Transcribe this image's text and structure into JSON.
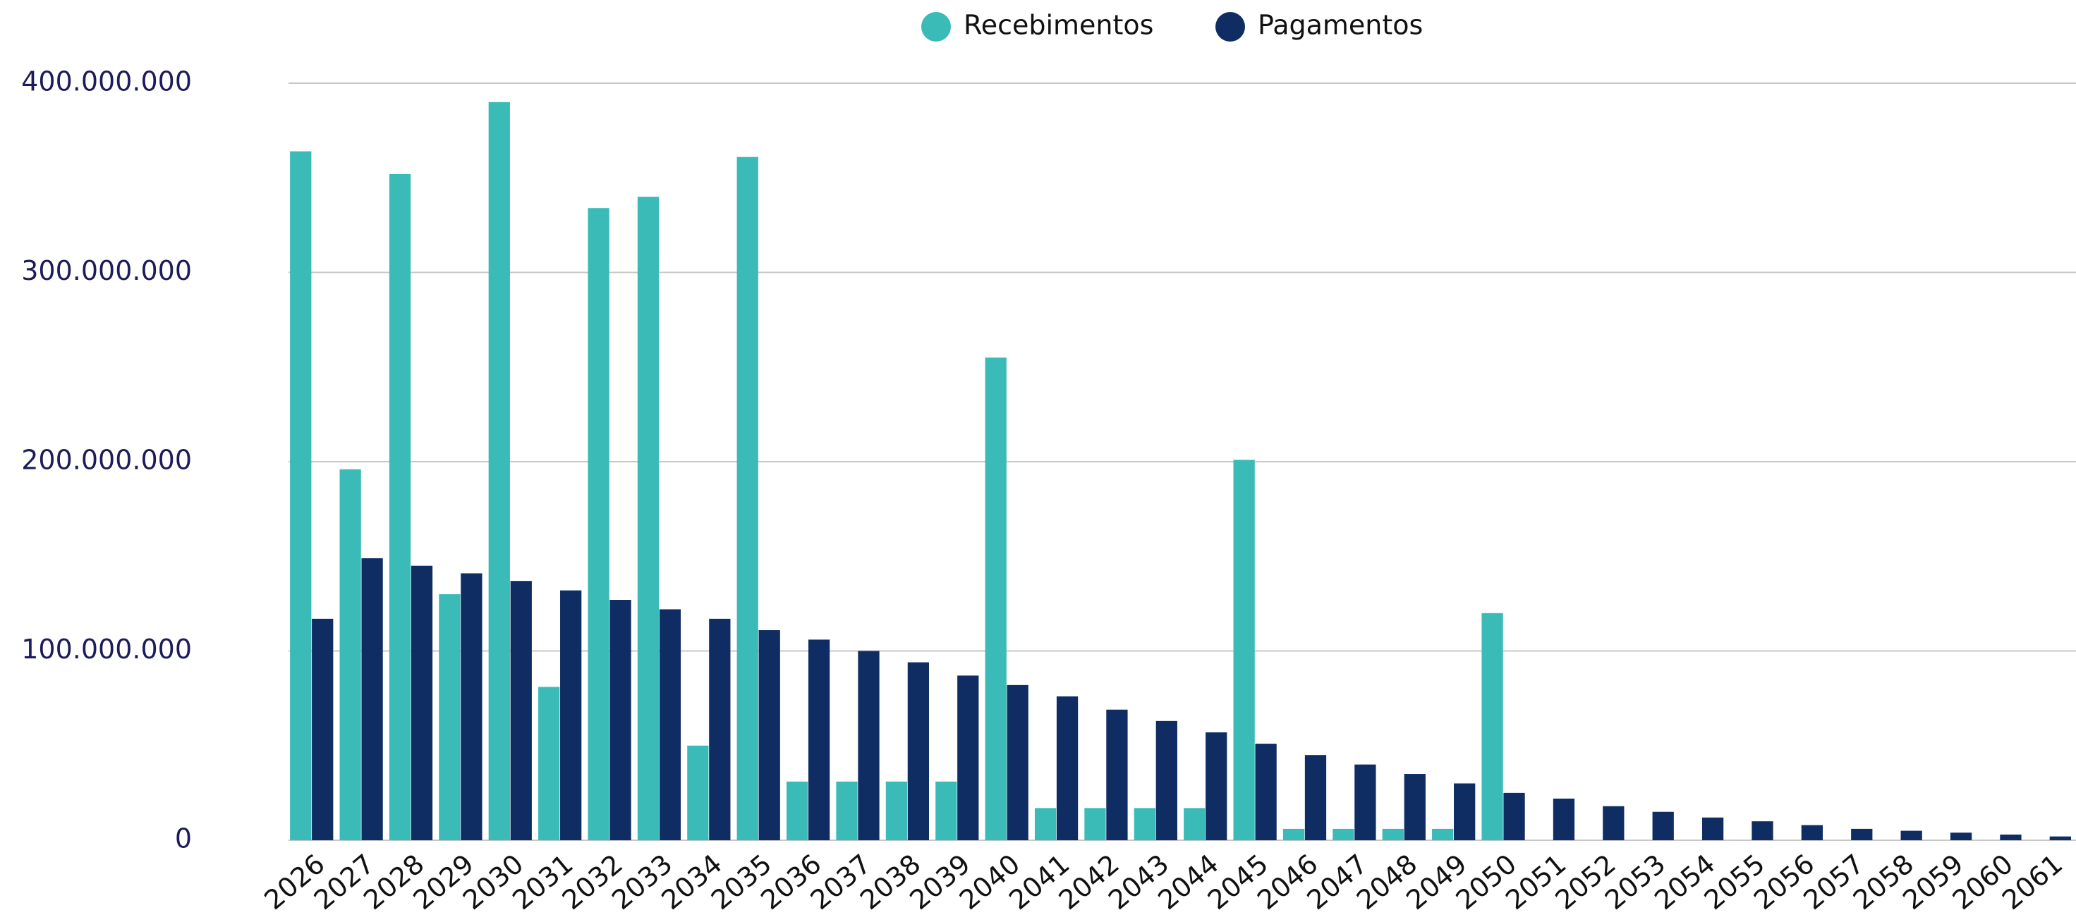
{
  "chart_data": {
    "type": "bar",
    "categories": [
      "2026",
      "2027",
      "2028",
      "2029",
      "2030",
      "2031",
      "2032",
      "2033",
      "2034",
      "2035",
      "2036",
      "2037",
      "2038",
      "2039",
      "2040",
      "2041",
      "2042",
      "2043",
      "2044",
      "2045",
      "2046",
      "2047",
      "2048",
      "2049",
      "2050",
      "2051",
      "2052",
      "2053",
      "2054",
      "2055",
      "2056",
      "2057",
      "2058",
      "2059",
      "2060",
      "2061"
    ],
    "series": [
      {
        "name": "Recebimentos",
        "color": "#3bbbb8",
        "values": [
          364000000,
          196000000,
          352000000,
          130000000,
          390000000,
          81000000,
          334000000,
          340000000,
          50000000,
          361000000,
          31000000,
          31000000,
          31000000,
          31000000,
          255000000,
          17000000,
          17000000,
          17000000,
          17000000,
          201000000,
          6000000,
          6000000,
          6000000,
          6000000,
          120000000,
          null,
          null,
          null,
          null,
          null,
          null,
          null,
          null,
          null,
          null,
          null
        ]
      },
      {
        "name": "Pagamentos",
        "color": "#0f2d63",
        "values": [
          117000000,
          149000000,
          145000000,
          141000000,
          137000000,
          132000000,
          127000000,
          122000000,
          117000000,
          111000000,
          106000000,
          100000000,
          94000000,
          87000000,
          82000000,
          76000000,
          69000000,
          63000000,
          57000000,
          51000000,
          45000000,
          40000000,
          35000000,
          30000000,
          25000000,
          22000000,
          18000000,
          15000000,
          12000000,
          10000000,
          8000000,
          6000000,
          5000000,
          4000000,
          3000000,
          2000000
        ]
      }
    ],
    "ylim": [
      0,
      400000000
    ],
    "yticks": [
      0,
      {
        "value": 100000000,
        "label": "100.000.000"
      },
      {
        "value": 200000000,
        "label": "200.000.000"
      },
      {
        "value": 300000000,
        "label": "300.000.000"
      },
      {
        "value": 400000000,
        "label": "400.000.000"
      }
    ],
    "grid": true,
    "legend": "top"
  }
}
